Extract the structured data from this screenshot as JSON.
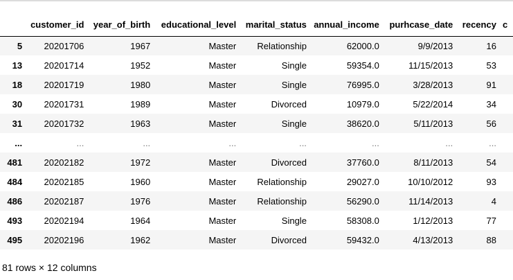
{
  "table": {
    "columns": [
      "",
      "customer_id",
      "year_of_birth",
      "educational_level",
      "marital_status",
      "annual_income",
      "purhcase_date",
      "recency",
      "c"
    ],
    "rows": [
      [
        "5",
        "20201706",
        "1967",
        "Master",
        "Relationship",
        "62000.0",
        "9/9/2013",
        "16",
        ""
      ],
      [
        "13",
        "20201714",
        "1952",
        "Master",
        "Single",
        "59354.0",
        "11/15/2013",
        "53",
        ""
      ],
      [
        "18",
        "20201719",
        "1980",
        "Master",
        "Single",
        "76995.0",
        "3/28/2013",
        "91",
        ""
      ],
      [
        "30",
        "20201731",
        "1989",
        "Master",
        "Divorced",
        "10979.0",
        "5/22/2014",
        "34",
        ""
      ],
      [
        "31",
        "20201732",
        "1963",
        "Master",
        "Single",
        "38620.0",
        "5/11/2013",
        "56",
        ""
      ],
      [
        "...",
        "...",
        "...",
        "...",
        "...",
        "...",
        "...",
        "...",
        ""
      ],
      [
        "481",
        "20202182",
        "1972",
        "Master",
        "Divorced",
        "37760.0",
        "8/11/2013",
        "54",
        ""
      ],
      [
        "484",
        "20202185",
        "1960",
        "Master",
        "Relationship",
        "29027.0",
        "10/10/2012",
        "93",
        ""
      ],
      [
        "486",
        "20202187",
        "1976",
        "Master",
        "Relationship",
        "56290.0",
        "11/14/2013",
        "4",
        ""
      ],
      [
        "493",
        "20202194",
        "1964",
        "Master",
        "Single",
        "58308.0",
        "1/12/2013",
        "77",
        ""
      ],
      [
        "495",
        "20202196",
        "1962",
        "Master",
        "Divorced",
        "59432.0",
        "4/13/2013",
        "88",
        ""
      ]
    ]
  },
  "summary": "81 rows × 12 columns"
}
